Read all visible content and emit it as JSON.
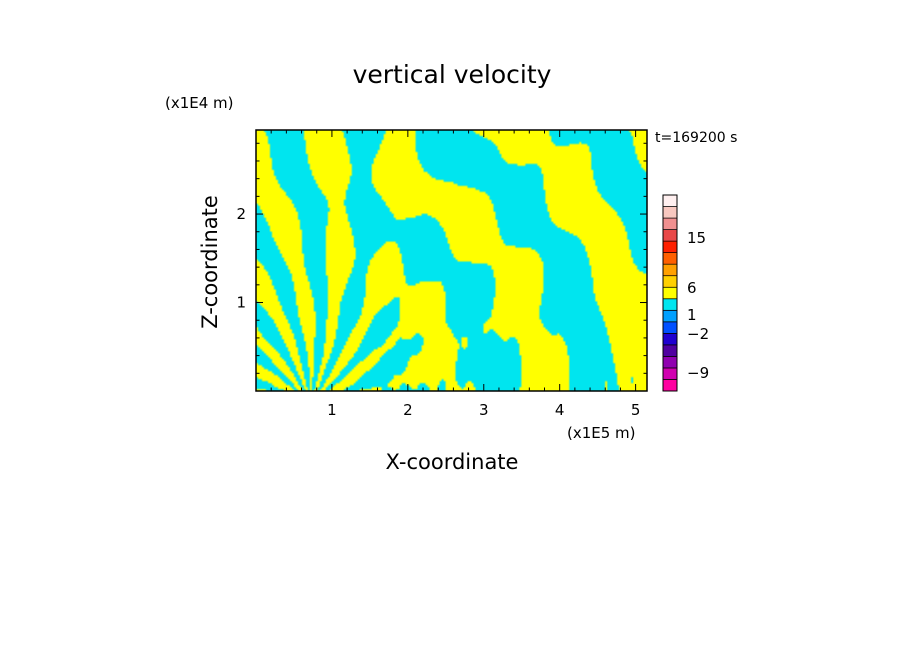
{
  "chart_data": {
    "type": "heatmap",
    "title": "vertical velocity",
    "xlabel": "X-coordinate",
    "ylabel": "Z-coordinate",
    "x_scale_label": "(x1E5 m)",
    "y_scale_label": "(x1E4 m)",
    "time_label": "t=169200 s",
    "xlim": [
      0,
      5.15
    ],
    "ylim": [
      0,
      2.95
    ],
    "x_ticks": [
      1,
      2,
      3,
      4,
      5
    ],
    "y_ticks": [
      1,
      2
    ],
    "field_colors": {
      "positive": "#ffff00",
      "negative": "#00e5ef"
    },
    "colorbar": {
      "tick_labels": [
        "15",
        "6",
        "1",
        "-2",
        "-9"
      ],
      "bins": [
        {
          "color": "#ff00a0"
        },
        {
          "color": "#d000b0"
        },
        {
          "color": "#9000b0"
        },
        {
          "color": "#5000a0"
        },
        {
          "color": "#2000d0"
        },
        {
          "color": "#0050ff"
        },
        {
          "color": "#00a0ff"
        },
        {
          "color": "#00e5ef"
        },
        {
          "color": "#ffff00"
        },
        {
          "color": "#ffd000"
        },
        {
          "color": "#ffa000"
        },
        {
          "color": "#ff6000"
        },
        {
          "color": "#ff2000"
        },
        {
          "color": "#e84848"
        },
        {
          "color": "#f09090"
        },
        {
          "color": "#f8c8c0"
        },
        {
          "color": "#fff0f0"
        }
      ]
    }
  }
}
